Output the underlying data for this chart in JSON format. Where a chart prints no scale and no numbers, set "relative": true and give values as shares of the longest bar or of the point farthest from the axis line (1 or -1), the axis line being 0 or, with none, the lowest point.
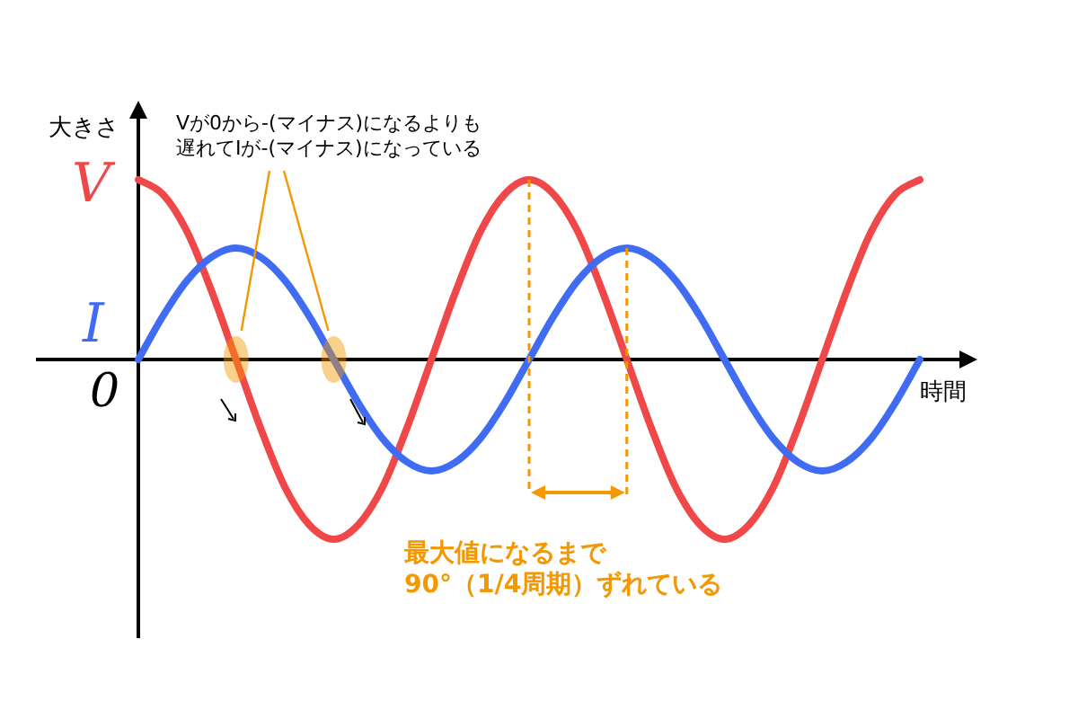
{
  "chart_data": {
    "type": "line",
    "relative": true,
    "xlabel": "時間",
    "ylabel": "大きさ",
    "categories": [
      null,
      null,
      null,
      null,
      null,
      null,
      null,
      null,
      null,
      null,
      null,
      null,
      null,
      null,
      null,
      null,
      null,
      null,
      null,
      null,
      null,
      null,
      null,
      null,
      null,
      null,
      null,
      null,
      null,
      null,
      null,
      null,
      null
    ],
    "series": [
      {
        "name": "V",
        "color": "#f04848",
        "values": [
          1,
          0.92,
          0.71,
          0.38,
          0,
          -0.38,
          -0.71,
          -0.92,
          -1,
          -0.92,
          -0.71,
          -0.38,
          0,
          0.38,
          0.71,
          0.92,
          1,
          0.92,
          0.71,
          0.38,
          0,
          -0.38,
          -0.71,
          -0.92,
          -1,
          -0.92,
          -0.71,
          -0.38,
          0,
          0.38,
          0.71,
          0.92,
          1
        ]
      },
      {
        "name": "I",
        "color": "#3f6cf2",
        "values": [
          0,
          0.24,
          0.44,
          0.57,
          0.62,
          0.57,
          0.44,
          0.24,
          0,
          -0.24,
          -0.44,
          -0.57,
          -0.62,
          -0.57,
          -0.44,
          -0.24,
          0,
          0.24,
          0.44,
          0.57,
          0.62,
          0.57,
          0.44,
          0.24,
          0,
          -0.24,
          -0.44,
          -0.57,
          -0.62,
          -0.57,
          -0.44,
          -0.24,
          0
        ]
      }
    ],
    "annotations": [
      "0",
      "Vが0から-(マイナス)になるよりも遅れてIが-(マイナス)になっている",
      "最大値になるまで90°（1/4周期）ずれている"
    ]
  }
}
